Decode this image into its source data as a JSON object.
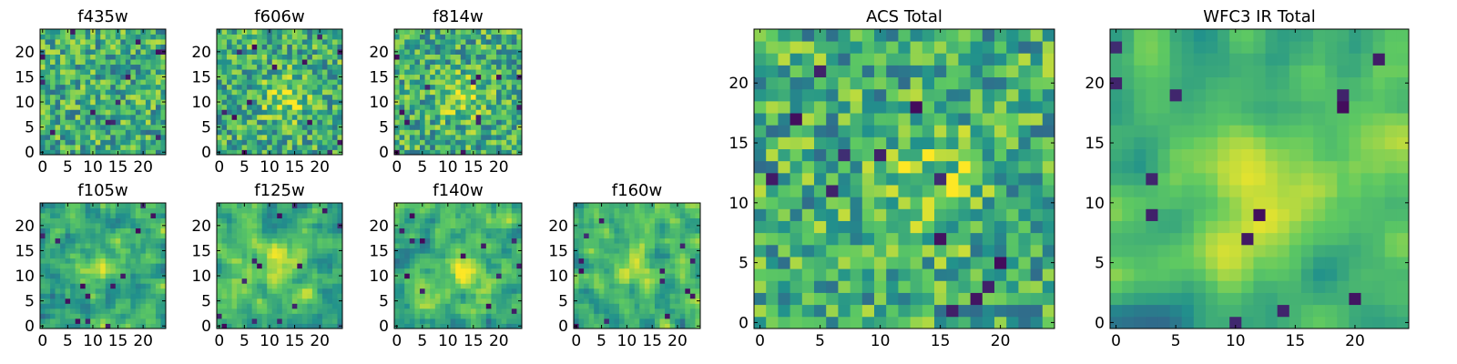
{
  "figure_title": "",
  "colormap": [
    "#440154",
    "#3b528b",
    "#21918c",
    "#5ec962",
    "#fde725"
  ],
  "chart_data": [
    {
      "type": "heatmap",
      "title": "f435w",
      "grid": [
        25,
        25
      ],
      "xlim": [
        -0.5,
        24.5
      ],
      "ylim": [
        -0.5,
        24.5
      ],
      "xticks": [
        "0",
        "5",
        "10",
        "15",
        "20"
      ],
      "yticks": [
        "0",
        "5",
        "10",
        "15",
        "20"
      ],
      "peak": null
    },
    {
      "type": "heatmap",
      "title": "f606w",
      "grid": [
        25,
        25
      ],
      "xlim": [
        -0.5,
        24.5
      ],
      "ylim": [
        -0.5,
        24.5
      ],
      "xticks": [
        "0",
        "5",
        "10",
        "15",
        "20"
      ],
      "yticks": [
        "0",
        "5",
        "10",
        "15",
        "20"
      ],
      "peak": [
        13,
        11
      ]
    },
    {
      "type": "heatmap",
      "title": "f814w",
      "grid": [
        25,
        25
      ],
      "xlim": [
        -0.5,
        24.5
      ],
      "ylim": [
        -0.5,
        24.5
      ],
      "xticks": [
        "0",
        "5",
        "10",
        "15",
        "20"
      ],
      "yticks": [
        "0",
        "5",
        "10",
        "15",
        "20"
      ],
      "peak": [
        13,
        11
      ]
    },
    {
      "type": "heatmap",
      "title": "f105w",
      "grid": [
        25,
        25
      ],
      "xlim": [
        -0.5,
        24.5
      ],
      "ylim": [
        -0.5,
        24.5
      ],
      "xticks": [
        "0",
        "5",
        "10",
        "15",
        "20"
      ],
      "yticks": [
        "0",
        "5",
        "10",
        "15",
        "20"
      ],
      "peak": [
        12,
        12
      ]
    },
    {
      "type": "heatmap",
      "title": "f125w",
      "grid": [
        25,
        25
      ],
      "xlim": [
        -0.5,
        24.5
      ],
      "ylim": [
        -0.5,
        24.5
      ],
      "xticks": [
        "0",
        "5",
        "10",
        "15",
        "20"
      ],
      "yticks": [
        "0",
        "5",
        "10",
        "15",
        "20"
      ],
      "peak": [
        12,
        12
      ]
    },
    {
      "type": "heatmap",
      "title": "f140w",
      "grid": [
        25,
        25
      ],
      "xlim": [
        -0.5,
        24.5
      ],
      "ylim": [
        -0.5,
        24.5
      ],
      "xticks": [
        "0",
        "5",
        "10",
        "15",
        "20"
      ],
      "yticks": [
        "0",
        "5",
        "10",
        "15",
        "20"
      ],
      "peak": [
        13,
        11
      ]
    },
    {
      "type": "heatmap",
      "title": "f160w",
      "grid": [
        25,
        25
      ],
      "xlim": [
        -0.5,
        24.5
      ],
      "ylim": [
        -0.5,
        24.5
      ],
      "xticks": [
        "0",
        "5",
        "10",
        "15",
        "20"
      ],
      "yticks": [
        "0",
        "5",
        "10",
        "15",
        "20"
      ],
      "peak": [
        11,
        12
      ]
    },
    {
      "type": "heatmap",
      "title": "ACS Total",
      "grid": [
        25,
        25
      ],
      "xlim": [
        -0.5,
        24.5
      ],
      "ylim": [
        -0.5,
        24.5
      ],
      "xticks": [
        "0",
        "5",
        "10",
        "15",
        "20"
      ],
      "yticks": [
        "0",
        "5",
        "10",
        "15",
        "20"
      ],
      "peak": [
        14,
        11
      ]
    },
    {
      "type": "heatmap",
      "title": "WFC3 IR Total",
      "grid": [
        25,
        25
      ],
      "xlim": [
        -0.5,
        24.5
      ],
      "ylim": [
        -0.5,
        24.5
      ],
      "xticks": [
        "0",
        "5",
        "10",
        "15",
        "20"
      ],
      "yticks": [
        "0",
        "5",
        "10",
        "15",
        "20"
      ],
      "peak": [
        12,
        11
      ]
    }
  ]
}
